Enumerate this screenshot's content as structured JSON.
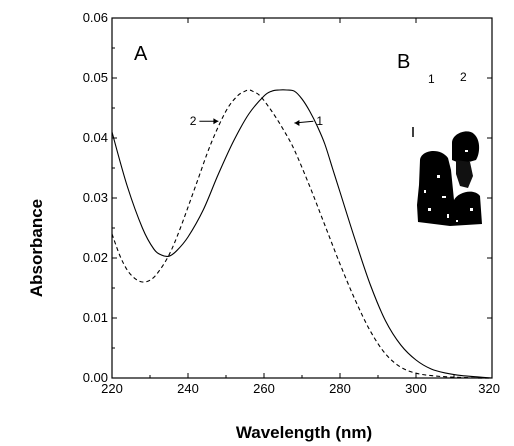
{
  "chart_data": {
    "type": "line",
    "title": "",
    "xlabel": "Wavelength (nm)",
    "ylabel": "Absorbance",
    "xlim": [
      220,
      320
    ],
    "ylim": [
      0.0,
      0.06
    ],
    "x_ticks": [
      "220",
      "240",
      "260",
      "280",
      "300",
      "320"
    ],
    "y_ticks": [
      "0.00",
      "0.01",
      "0.02",
      "0.03",
      "0.04",
      "0.05",
      "0.06"
    ],
    "grid": false,
    "legend": "none",
    "panel_labels": [
      "A",
      "B"
    ],
    "series": [
      {
        "name": "1",
        "style": "solid",
        "color": "#000000",
        "x": [
          220,
          224,
          228,
          231,
          233,
          235,
          237,
          240,
          244,
          248,
          252,
          256,
          260,
          262,
          264,
          266,
          268,
          270,
          272,
          274,
          276,
          278,
          280,
          284,
          288,
          292,
          296,
          300,
          304,
          308,
          312,
          316,
          320
        ],
        "y": [
          0.041,
          0.032,
          0.025,
          0.0215,
          0.0205,
          0.0203,
          0.0212,
          0.0235,
          0.028,
          0.034,
          0.0395,
          0.044,
          0.047,
          0.0478,
          0.048,
          0.048,
          0.0478,
          0.0465,
          0.0445,
          0.042,
          0.039,
          0.035,
          0.031,
          0.023,
          0.0155,
          0.0095,
          0.0055,
          0.003,
          0.0015,
          0.0008,
          0.0004,
          0.0002,
          0.0
        ]
      },
      {
        "name": "2",
        "style": "dashed",
        "color": "#000000",
        "x": [
          220,
          222,
          224,
          226,
          228,
          230,
          232,
          235,
          238,
          242,
          246,
          250,
          253,
          255,
          256,
          257,
          259,
          262,
          265,
          268,
          272,
          276,
          280,
          284,
          288,
          292,
          296,
          300,
          304,
          308,
          312,
          316,
          320
        ],
        "y": [
          0.024,
          0.0205,
          0.018,
          0.0166,
          0.016,
          0.0163,
          0.0175,
          0.0205,
          0.025,
          0.032,
          0.039,
          0.0445,
          0.047,
          0.0478,
          0.048,
          0.0478,
          0.047,
          0.0445,
          0.0415,
          0.038,
          0.032,
          0.0255,
          0.019,
          0.013,
          0.0078,
          0.004,
          0.0018,
          0.0008,
          0.0004,
          0.0002,
          0.0001,
          0.0,
          0.0
        ]
      }
    ],
    "curve_labels": [
      {
        "text": "1",
        "arrow_from": [
          273,
          0.0428
        ],
        "arrow_to": [
          268,
          0.0425
        ]
      },
      {
        "text": "2",
        "arrow_from": [
          243,
          0.0428
        ],
        "arrow_to": [
          248,
          0.0428
        ]
      }
    ],
    "inset": {
      "label": "B",
      "lane_labels": [
        "1",
        "2"
      ]
    }
  }
}
